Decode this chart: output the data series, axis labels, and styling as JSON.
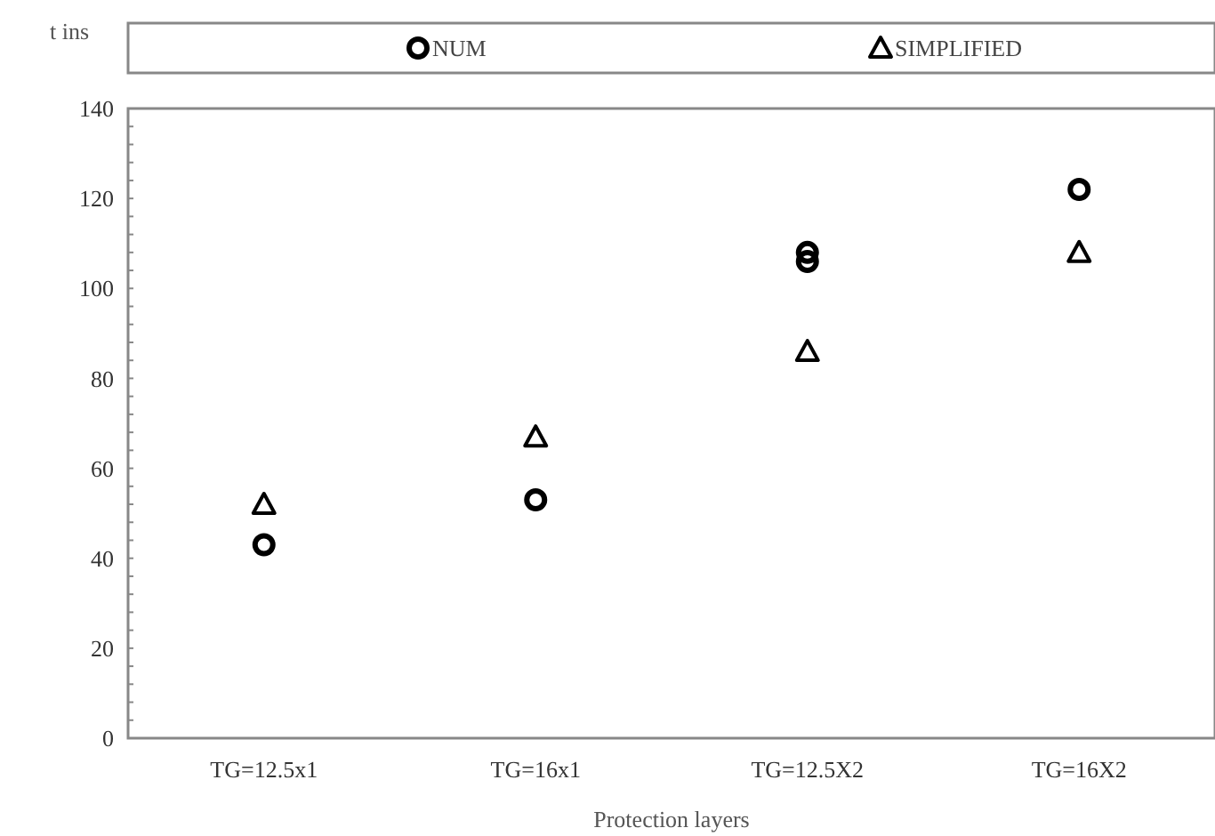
{
  "chart_data": {
    "type": "scatter",
    "xlabel": "Protection layers",
    "ylabel": "t ins",
    "categories": [
      "TG=12.5x1",
      "TG=16x1",
      "TG=12.5X2",
      "TG=16X2"
    ],
    "ylim": [
      0,
      140
    ],
    "yticks": [
      0,
      {
        "value": 4,
        "label": null
      },
      {
        "value": 8,
        "label": null
      },
      {
        "value": 12,
        "label": null
      },
      {
        "value": 16,
        "label": null
      },
      20,
      {
        "value": 24,
        "label": null
      },
      {
        "value": 28,
        "label": null
      },
      {
        "value": 32,
        "label": null
      },
      {
        "value": 36,
        "label": null
      },
      40,
      {
        "value": 44,
        "label": null
      },
      {
        "value": 48,
        "label": null
      },
      {
        "value": 52,
        "label": null
      },
      {
        "value": 56,
        "label": null
      },
      60,
      {
        "value": 64,
        "label": null
      },
      {
        "value": 68,
        "label": null
      },
      {
        "value": 72,
        "label": null
      },
      {
        "value": 76,
        "label": null
      },
      80,
      {
        "value": 84,
        "label": null
      },
      {
        "value": 88,
        "label": null
      },
      {
        "value": 92,
        "label": null
      },
      {
        "value": 96,
        "label": null
      },
      100,
      {
        "value": 104,
        "label": null
      },
      {
        "value": 108,
        "label": null
      },
      {
        "value": 112,
        "label": null
      },
      {
        "value": 116,
        "label": null
      },
      120,
      {
        "value": 124,
        "label": null
      },
      {
        "value": 128,
        "label": null
      },
      {
        "value": 132,
        "label": null
      },
      {
        "value": 136,
        "label": null
      },
      140
    ],
    "legend": "top",
    "grid": false,
    "series": [
      {
        "name": "NUM",
        "color": "#000000",
        "marker": "circle",
        "values": [
          43,
          53,
          106,
          122
        ]
      },
      {
        "name": "SIMPLIFIED",
        "color": "#000000",
        "marker": "triangle",
        "values": [
          52,
          67,
          86,
          108
        ]
      },
      {
        "color": "#000000",
        "marker": "circle",
        "values": [
          null,
          null,
          108,
          null
        ]
      }
    ]
  }
}
